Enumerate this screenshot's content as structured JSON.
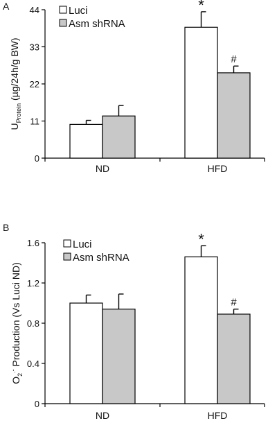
{
  "chart_data": [
    {
      "type": "bar",
      "panel_label": "A",
      "categories": [
        "ND",
        "HFD"
      ],
      "series": [
        {
          "name": "Luci",
          "values": [
            10,
            38.8
          ],
          "errors": [
            1.2,
            4.6
          ],
          "color": "#ffffff"
        },
        {
          "name": "Asm shRNA",
          "values": [
            12.5,
            25.3
          ],
          "errors": [
            3.1,
            2.0
          ],
          "color": "#c8c8c8"
        }
      ],
      "ylabel_main": "U",
      "ylabel_sub": "Protein",
      "ylabel_rest": " (µg/24h/g BW)",
      "ylim": [
        0,
        44
      ],
      "yticks": [
        "0",
        "11",
        "22",
        "33",
        "44"
      ],
      "ytick_values": [
        0,
        11,
        22,
        33,
        44
      ],
      "legend_placement": "top-left",
      "annotations": [
        {
          "text": "*",
          "category": "HFD",
          "series": "Luci"
        },
        {
          "text": "#",
          "category": "HFD",
          "series": "Asm shRNA"
        }
      ],
      "grid": false
    },
    {
      "type": "bar",
      "panel_label": "B",
      "categories": [
        "ND",
        "HFD"
      ],
      "series": [
        {
          "name": "Luci",
          "values": [
            1.0,
            1.46
          ],
          "errors": [
            0.08,
            0.11
          ],
          "color": "#ffffff"
        },
        {
          "name": "Asm shRNA",
          "values": [
            0.94,
            0.89
          ],
          "errors": [
            0.15,
            0.05
          ],
          "color": "#c8c8c8"
        }
      ],
      "ylabel_main": "O",
      "ylabel_sub": "2",
      "ylabel_sup": ".-",
      "ylabel_rest": " Production (Vs Luci ND)",
      "ylim": [
        0,
        1.6
      ],
      "yticks": [
        "0",
        "0.4",
        "0.8",
        "1.2",
        "1.6"
      ],
      "ytick_values": [
        0,
        0.4,
        0.8,
        1.2,
        1.6
      ],
      "legend_placement": "top-left",
      "annotations": [
        {
          "text": "*",
          "category": "HFD",
          "series": "Luci"
        },
        {
          "text": "#",
          "category": "HFD",
          "series": "Asm shRNA"
        }
      ],
      "grid": false
    }
  ]
}
